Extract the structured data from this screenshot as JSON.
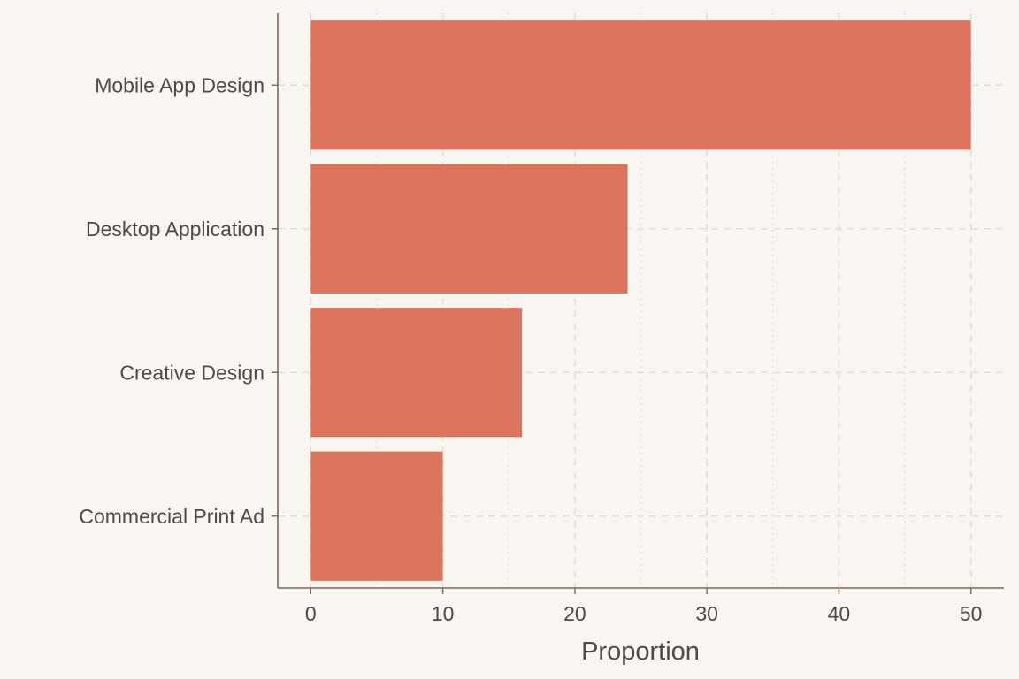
{
  "chart_data": {
    "type": "bar",
    "orientation": "horizontal",
    "categories": [
      "Mobile App Design",
      "Desktop Application",
      "Creative Design",
      "Commercial Print Ad"
    ],
    "values": [
      50,
      24,
      16,
      10
    ],
    "xlabel": "Proportion",
    "ylabel": "",
    "xlim": [
      -2.5,
      52.5
    ],
    "xticks": [
      0,
      10,
      20,
      30,
      40,
      50
    ],
    "grid": true,
    "colors": {
      "bar": "#dc735d",
      "background": "#f9f6f1",
      "axis": "#7a6a55",
      "grid": "#e4ddd0",
      "text": "#4d4a42"
    }
  }
}
